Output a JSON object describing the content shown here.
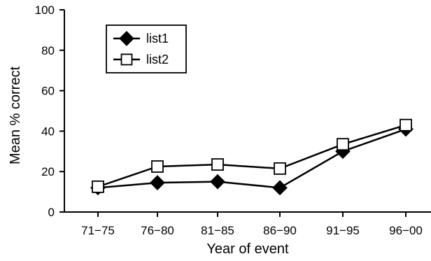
{
  "chart_data": {
    "type": "line",
    "title": "",
    "xlabel": "Year of event",
    "ylabel": "Mean % correct",
    "categories": [
      "71−75",
      "76−80",
      "81−85",
      "86−90",
      "91−95",
      "96−00"
    ],
    "ylim": [
      0,
      100
    ],
    "yticks": [
      "0",
      "20",
      "40",
      "60",
      "80",
      "100"
    ],
    "grid": false,
    "legend_position": "top-left",
    "series": [
      {
        "name": "list1",
        "marker": "filled-diamond",
        "color": "#000000",
        "values": [
          12,
          14.5,
          15,
          12,
          30,
          41
        ]
      },
      {
        "name": "list2",
        "marker": "open-square",
        "color": "#000000",
        "values": [
          12.5,
          22.5,
          23.5,
          21.5,
          33.5,
          43
        ]
      }
    ]
  }
}
